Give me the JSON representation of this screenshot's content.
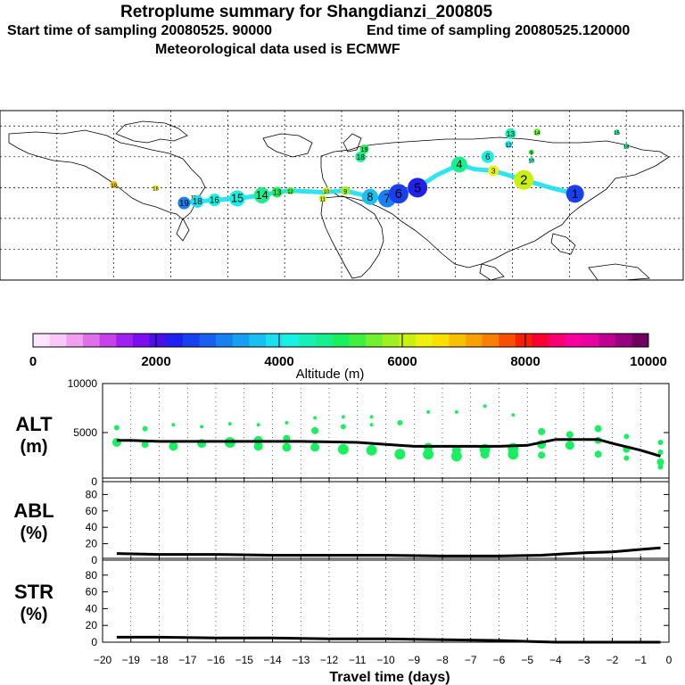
{
  "header": {
    "title": "Retroplume summary for Shangdianzi_200805",
    "start": "Start time of sampling 20080525. 90000",
    "end": "End time of sampling 20080525.120000",
    "met": "Meteorological data used is ECMWF"
  },
  "colorbar": {
    "label": "Altitude (m)",
    "ticks": [
      "0",
      "2000",
      "4000",
      "6000",
      "8000",
      "10000"
    ],
    "colors": [
      "#fde6fd",
      "#f8c8f8",
      "#f0a0f0",
      "#e070e8",
      "#c840e8",
      "#a020f0",
      "#7a10f0",
      "#4a10e8",
      "#2020f0",
      "#1840f0",
      "#1860f0",
      "#1880f0",
      "#18a0f0",
      "#18c0f0",
      "#18e0f0",
      "#18f0e0",
      "#18f0b8",
      "#18f090",
      "#18f060",
      "#40f040",
      "#70f030",
      "#a0f020",
      "#c8f010",
      "#f0f010",
      "#f8e000",
      "#f8c000",
      "#f8a000",
      "#f88000",
      "#f85000",
      "#f82000",
      "#f80030",
      "#f80070",
      "#f800a0",
      "#e800a0",
      "#c00090",
      "#980080",
      "#700060"
    ]
  },
  "chart_data": [
    {
      "type": "scatter",
      "name": "ALT",
      "ylabel": "ALT (m)",
      "ylim": [
        0,
        10000
      ],
      "yticks": [
        "0",
        "5000",
        "10000"
      ],
      "xlim": [
        -20,
        0
      ],
      "line_x": [
        -19.5,
        -19,
        -18,
        -17,
        -16,
        -15,
        -14,
        -13,
        -12,
        -11,
        -10,
        -9,
        -8,
        -7,
        -6,
        -5,
        -4,
        -3,
        -2.5,
        -2,
        -1,
        -0.3
      ],
      "line_y": [
        4200,
        4200,
        4100,
        4100,
        4100,
        4100,
        4100,
        4100,
        4050,
        4000,
        3800,
        3600,
        3600,
        3600,
        3600,
        3700,
        4300,
        4300,
        4300,
        3900,
        3200,
        2600
      ],
      "points": [
        {
          "x": -19.5,
          "y": 5500,
          "s": 3
        },
        {
          "x": -19.5,
          "y": 4000,
          "s": 5
        },
        {
          "x": -18.5,
          "y": 5400,
          "s": 3
        },
        {
          "x": -18.5,
          "y": 3800,
          "s": 4
        },
        {
          "x": -17.5,
          "y": 5800,
          "s": 2
        },
        {
          "x": -17.5,
          "y": 3600,
          "s": 5
        },
        {
          "x": -16.5,
          "y": 5600,
          "s": 2
        },
        {
          "x": -16.5,
          "y": 3900,
          "s": 5
        },
        {
          "x": -15.5,
          "y": 5900,
          "s": 2
        },
        {
          "x": -15.5,
          "y": 4000,
          "s": 6
        },
        {
          "x": -14.5,
          "y": 5800,
          "s": 2
        },
        {
          "x": -14.5,
          "y": 4200,
          "s": 5
        },
        {
          "x": -14.5,
          "y": 3600,
          "s": 5
        },
        {
          "x": -13.5,
          "y": 6000,
          "s": 2
        },
        {
          "x": -13.5,
          "y": 4400,
          "s": 4
        },
        {
          "x": -13.5,
          "y": 3500,
          "s": 5
        },
        {
          "x": -12.5,
          "y": 6500,
          "s": 2
        },
        {
          "x": -12.5,
          "y": 5200,
          "s": 4
        },
        {
          "x": -12.5,
          "y": 3500,
          "s": 5
        },
        {
          "x": -11.5,
          "y": 6600,
          "s": 2
        },
        {
          "x": -11.5,
          "y": 5600,
          "s": 3
        },
        {
          "x": -11.5,
          "y": 3300,
          "s": 6
        },
        {
          "x": -10.5,
          "y": 6600,
          "s": 2
        },
        {
          "x": -10.5,
          "y": 5800,
          "s": 2
        },
        {
          "x": -10.5,
          "y": 3200,
          "s": 6
        },
        {
          "x": -9.5,
          "y": 6000,
          "s": 3
        },
        {
          "x": -9.5,
          "y": 2800,
          "s": 6
        },
        {
          "x": -8.5,
          "y": 7100,
          "s": 2
        },
        {
          "x": -8.5,
          "y": 3500,
          "s": 5
        },
        {
          "x": -8.5,
          "y": 2800,
          "s": 6
        },
        {
          "x": -7.5,
          "y": 7100,
          "s": 2
        },
        {
          "x": -7.5,
          "y": 3200,
          "s": 5
        },
        {
          "x": -7.5,
          "y": 2600,
          "s": 6
        },
        {
          "x": -6.5,
          "y": 7700,
          "s": 2
        },
        {
          "x": -6.5,
          "y": 3300,
          "s": 6
        },
        {
          "x": -6.5,
          "y": 2800,
          "s": 5
        },
        {
          "x": -5.5,
          "y": 6800,
          "s": 2
        },
        {
          "x": -5.5,
          "y": 3400,
          "s": 6
        },
        {
          "x": -5.5,
          "y": 2800,
          "s": 6
        },
        {
          "x": -4.5,
          "y": 5100,
          "s": 4
        },
        {
          "x": -4.5,
          "y": 3800,
          "s": 5
        },
        {
          "x": -4.5,
          "y": 2700,
          "s": 4
        },
        {
          "x": -3.5,
          "y": 4800,
          "s": 4
        },
        {
          "x": -3.5,
          "y": 3700,
          "s": 5
        },
        {
          "x": -2.5,
          "y": 5400,
          "s": 4
        },
        {
          "x": -2.5,
          "y": 4200,
          "s": 4
        },
        {
          "x": -2.5,
          "y": 2800,
          "s": 4
        },
        {
          "x": -1.5,
          "y": 4600,
          "s": 3
        },
        {
          "x": -1.5,
          "y": 3300,
          "s": 4
        },
        {
          "x": -1.5,
          "y": 2400,
          "s": 3
        },
        {
          "x": -0.3,
          "y": 4000,
          "s": 3
        },
        {
          "x": -0.3,
          "y": 3000,
          "s": 3
        },
        {
          "x": -0.3,
          "y": 2000,
          "s": 4
        },
        {
          "x": -0.3,
          "y": 1500,
          "s": 3
        }
      ]
    },
    {
      "type": "line",
      "name": "ABL",
      "ylabel": "ABL (%)",
      "ylim": [
        0,
        100
      ],
      "yticks": [
        "0",
        "20",
        "40",
        "60",
        "80"
      ],
      "x": [
        -19.5,
        -18,
        -16,
        -14,
        -12,
        -10,
        -8,
        -6,
        -4.5,
        -3,
        -2,
        -1,
        -0.3
      ],
      "y": [
        8,
        7,
        7,
        6,
        6,
        6,
        5,
        5,
        6,
        9,
        10,
        13,
        15
      ]
    },
    {
      "type": "line",
      "name": "STR",
      "ylabel": "STR (%)",
      "ylim": [
        0,
        100
      ],
      "yticks": [
        "0",
        "20",
        "40",
        "60",
        "80"
      ],
      "x": [
        -19.5,
        -18,
        -16,
        -14,
        -12,
        -10,
        -8,
        -6,
        -5,
        -4,
        -2,
        -0.3
      ],
      "y": [
        6,
        6,
        5,
        5,
        4,
        4,
        3,
        2,
        1,
        0,
        0,
        0
      ],
      "xlabel": "Travel time (days)",
      "xticks": [
        "-20",
        "-19",
        "-18",
        "-17",
        "-16",
        "-15",
        "-14",
        "-13",
        "-12",
        "-11",
        "-10",
        "-9",
        "-8",
        "-7",
        "-6",
        "-5",
        "-4",
        "-3",
        "-2",
        "-1",
        "0"
      ]
    }
  ],
  "map": {
    "circles": [
      {
        "label": "19",
        "x": -120,
        "y": 42,
        "alt": 6800,
        "r": 4
      },
      {
        "label": "18",
        "x": -98,
        "y": 40,
        "alt": 6400,
        "r": 3
      },
      {
        "label": "17",
        "x": -78,
        "y": 34,
        "alt": 6800,
        "r": 2
      },
      {
        "label": "19",
        "x": -83,
        "y": 30,
        "alt": 3000,
        "r": 7
      },
      {
        "label": "18",
        "x": -76,
        "y": 31,
        "alt": 3800,
        "r": 7
      },
      {
        "label": "16",
        "x": -67,
        "y": 32,
        "alt": 4300,
        "r": 7
      },
      {
        "label": "15",
        "x": -55,
        "y": 33,
        "alt": 4300,
        "r": 9
      },
      {
        "label": "14",
        "x": -42,
        "y": 35,
        "alt": 4600,
        "r": 9
      },
      {
        "label": "13",
        "x": -34,
        "y": 37,
        "alt": 5000,
        "r": 6
      },
      {
        "label": "12",
        "x": -27,
        "y": 38,
        "alt": 5300,
        "r": 4
      },
      {
        "label": "11",
        "x": -10,
        "y": 33,
        "alt": 6200,
        "r": 4
      },
      {
        "label": "10",
        "x": -8,
        "y": 38,
        "alt": 6100,
        "r": 4
      },
      {
        "label": "9",
        "x": 2,
        "y": 38,
        "alt": 5800,
        "r": 5
      },
      {
        "label": "8",
        "x": 15,
        "y": 34,
        "alt": 3700,
        "r": 9
      },
      {
        "label": "7",
        "x": 24,
        "y": 33,
        "alt": 3000,
        "r": 10
      },
      {
        "label": "6",
        "x": 30,
        "y": 36,
        "alt": 2500,
        "r": 11
      },
      {
        "label": "5",
        "x": 40,
        "y": 40,
        "alt": 2300,
        "r": 11
      },
      {
        "label": "4",
        "x": 62,
        "y": 55,
        "alt": 4600,
        "r": 9
      },
      {
        "label": "3",
        "x": 80,
        "y": 51,
        "alt": 6400,
        "r": 6
      },
      {
        "label": "2",
        "x": 96,
        "y": 45,
        "alt": 6000,
        "r": 11
      },
      {
        "label": "1",
        "x": 123,
        "y": 36,
        "alt": 2500,
        "r": 10
      },
      {
        "label": "18",
        "x": 10,
        "y": 60,
        "alt": 4600,
        "r": 6
      },
      {
        "label": "19",
        "x": 12,
        "y": 65,
        "alt": 5000,
        "r": 5
      },
      {
        "label": "13",
        "x": 89,
        "y": 75,
        "alt": 4500,
        "r": 6
      },
      {
        "label": "14",
        "x": 103,
        "y": 76,
        "alt": 5600,
        "r": 4
      },
      {
        "label": "15",
        "x": 145,
        "y": 76,
        "alt": 4600,
        "r": 3
      },
      {
        "label": "18",
        "x": 150,
        "y": 67,
        "alt": 4600,
        "r": 3
      },
      {
        "label": "6",
        "x": 77,
        "y": 60,
        "alt": 4200,
        "r": 7
      },
      {
        "label": "9",
        "x": 100,
        "y": 63,
        "alt": 5200,
        "r": 3
      },
      {
        "label": "10",
        "x": 100,
        "y": 58,
        "alt": 4400,
        "r": 3
      },
      {
        "label": "12",
        "x": 88,
        "y": 68,
        "alt": 4000,
        "r": 4
      }
    ]
  }
}
